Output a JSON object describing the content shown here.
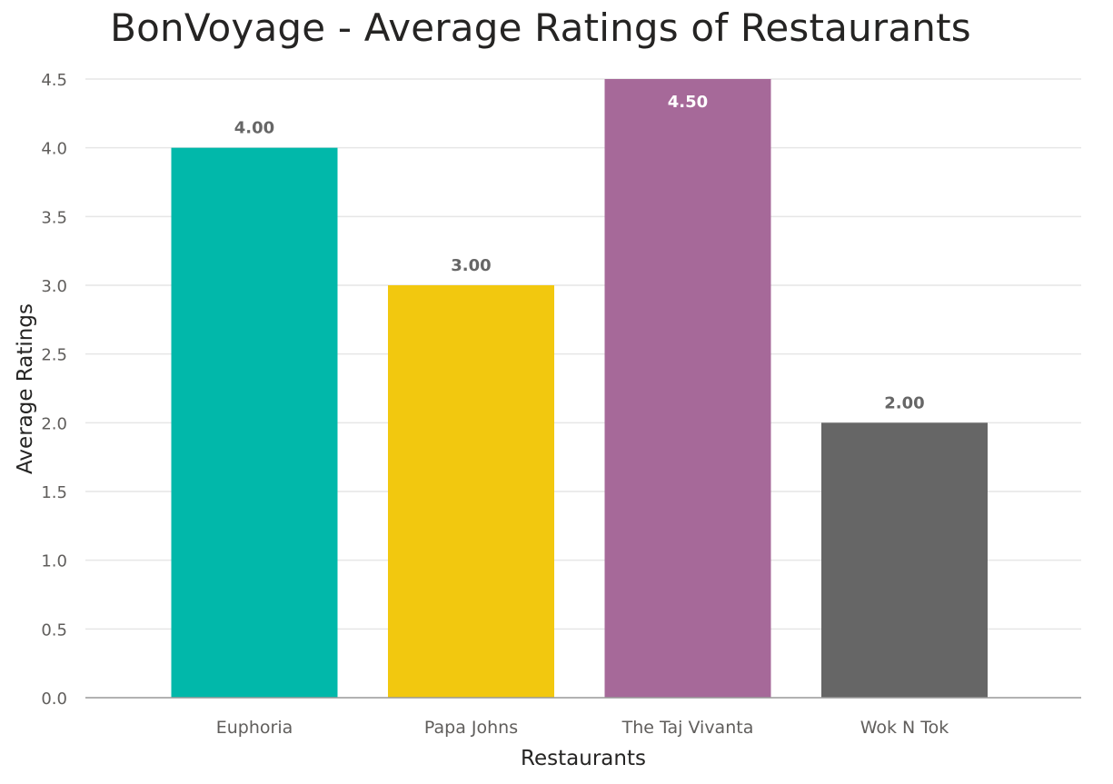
{
  "chart_data": {
    "type": "bar",
    "title": "BonVoyage - Average Ratings of Restaurants",
    "xlabel": "Restaurants",
    "ylabel": "Average Ratings",
    "categories": [
      "Euphoria",
      "Papa Johns",
      "The Taj Vivanta",
      "Wok N Tok"
    ],
    "values": [
      4.0,
      3.0,
      4.5,
      2.0
    ],
    "data_labels": [
      "4.00",
      "3.00",
      "4.50",
      "2.00"
    ],
    "bar_colors": [
      "#01B8AA",
      "#F2C80F",
      "#A66999",
      "#666666"
    ],
    "ylim": [
      0,
      4.5
    ],
    "yticks": [
      0.0,
      0.5,
      1.0,
      1.5,
      2.0,
      2.5,
      3.0,
      3.5,
      4.0,
      4.5
    ],
    "ytick_labels": [
      "0.0",
      "0.5",
      "1.0",
      "1.5",
      "2.0",
      "2.5",
      "3.0",
      "3.5",
      "4.0",
      "4.5"
    ],
    "grid": true,
    "legend": "none"
  }
}
